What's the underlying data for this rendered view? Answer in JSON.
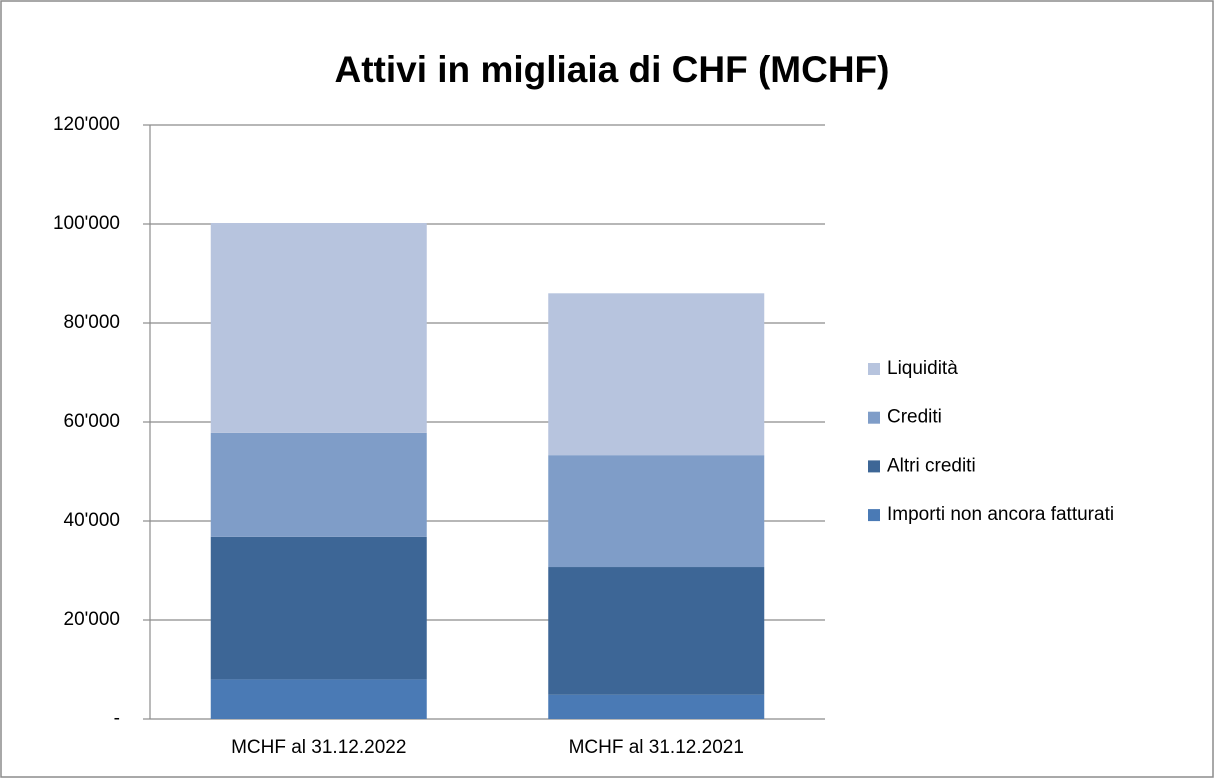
{
  "chart_data": {
    "type": "stacked_bar",
    "title": "Attivi in migliaia di CHF (MCHF)",
    "categories": [
      "MCHF al 31.12.2022",
      "MCHF al 31.12.2021"
    ],
    "series": [
      {
        "name": "Importi non ancora fatturati",
        "color": "#4a7ab5",
        "values": [
          8000,
          4900
        ]
      },
      {
        "name": "Altri crediti",
        "color": "#3d6696",
        "values": [
          28800,
          25800
        ]
      },
      {
        "name": "Crediti",
        "color": "#7f9dc8",
        "values": [
          21000,
          22600
        ]
      },
      {
        "name": "Liquidità",
        "color": "#b7c4de",
        "values": [
          42400,
          32700
        ]
      }
    ],
    "ylim": [
      0,
      120000
    ],
    "yticks": [
      {
        "value": 0,
        "label": "-"
      },
      {
        "value": 20000,
        "label": "20'000"
      },
      {
        "value": 40000,
        "label": "40'000"
      },
      {
        "value": 60000,
        "label": "60'000"
      },
      {
        "value": 80000,
        "label": "80'000"
      },
      {
        "value": 100000,
        "label": "100'000"
      },
      {
        "value": 120000,
        "label": "120'000"
      }
    ],
    "grid": true,
    "legend": "right"
  }
}
